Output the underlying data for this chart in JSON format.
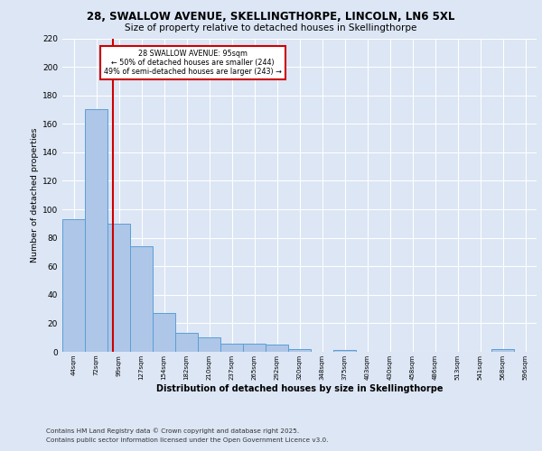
{
  "title_line1": "28, SWALLOW AVENUE, SKELLINGTHORPE, LINCOLN, LN6 5XL",
  "title_line2": "Size of property relative to detached houses in Skellingthorpe",
  "xlabel": "Distribution of detached houses by size in Skellingthorpe",
  "ylabel": "Number of detached properties",
  "footnote1": "Contains HM Land Registry data © Crown copyright and database right 2025.",
  "footnote2": "Contains public sector information licensed under the Open Government Licence v3.0.",
  "annotation_line1": "28 SWALLOW AVENUE: 95sqm",
  "annotation_line2": "← 50% of detached houses are smaller (244)",
  "annotation_line3": "49% of semi-detached houses are larger (243) →",
  "bar_labels": [
    "44sqm",
    "72sqm",
    "99sqm",
    "127sqm",
    "154sqm",
    "182sqm",
    "210sqm",
    "237sqm",
    "265sqm",
    "292sqm",
    "320sqm",
    "348sqm",
    "375sqm",
    "403sqm",
    "430sqm",
    "458sqm",
    "486sqm",
    "513sqm",
    "541sqm",
    "568sqm",
    "596sqm"
  ],
  "bar_values": [
    93,
    170,
    90,
    74,
    27,
    13,
    10,
    6,
    6,
    5,
    2,
    0,
    1,
    0,
    0,
    0,
    0,
    0,
    0,
    2,
    0
  ],
  "bar_color": "#aec6e8",
  "bar_edge_color": "#5a9fd4",
  "red_line_x": 1.72,
  "red_line_color": "#cc0000",
  "annotation_box_color": "#cc0000",
  "fig_bg_color": "#dce6f5",
  "plot_bg_color": "#dce6f5",
  "ylim": [
    0,
    220
  ],
  "yticks": [
    0,
    20,
    40,
    60,
    80,
    100,
    120,
    140,
    160,
    180,
    200,
    220
  ]
}
